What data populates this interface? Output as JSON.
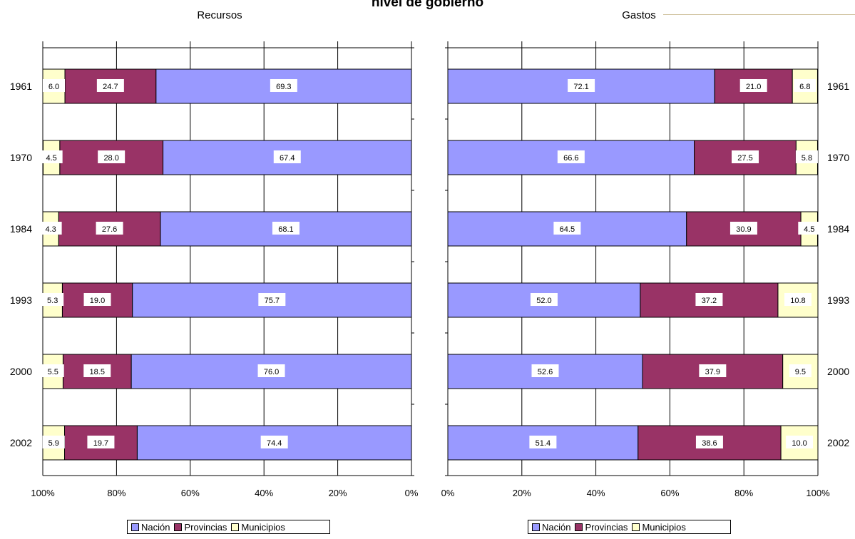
{
  "title": "nivel de gobierno",
  "colors": {
    "Nación": "#9999ff",
    "Provincias": "#993366",
    "Municipios": "#ffffcc"
  },
  "legend": [
    {
      "label": "Nación",
      "color": "#9999ff"
    },
    {
      "label": "Provincias",
      "color": "#993366"
    },
    {
      "label": "Municipios",
      "color": "#ffffcc"
    }
  ],
  "chart_data": [
    {
      "type": "bar",
      "title": "Recursos",
      "orientation": "horizontal-stacked-100",
      "x_direction": "reversed",
      "categories": [
        "1961",
        "1970",
        "1984",
        "1993",
        "2000",
        "2002"
      ],
      "series": [
        {
          "name": "Nación",
          "values": [
            69.3,
            67.4,
            68.1,
            75.7,
            76.0,
            74.4
          ],
          "labels": [
            "69.3",
            "67.4",
            "68.1",
            "75.7",
            "76.0",
            "74.4"
          ]
        },
        {
          "name": "Provincias",
          "values": [
            24.7,
            28.0,
            27.6,
            19.0,
            18.5,
            19.7
          ],
          "labels": [
            "24.7",
            "28.0",
            "27.6",
            "19.0",
            "18.5",
            "19.7"
          ]
        },
        {
          "name": "Municipios",
          "values": [
            6.0,
            4.5,
            4.3,
            5.3,
            5.5,
            5.9
          ],
          "labels": [
            "6.0",
            "4.5",
            "4.3",
            "5.3",
            "5.5",
            "5.9"
          ]
        }
      ],
      "xlim": [
        0,
        100
      ],
      "x_ticks": [
        "100%",
        "80%",
        "60%",
        "40%",
        "20%",
        "0%"
      ],
      "grid": true,
      "legend_position": "bottom"
    },
    {
      "type": "bar",
      "title": "Gastos",
      "orientation": "horizontal-stacked-100",
      "x_direction": "normal",
      "categories": [
        "1961",
        "1970",
        "1984",
        "1993",
        "2000",
        "2002"
      ],
      "series": [
        {
          "name": "Nación",
          "values": [
            72.1,
            66.6,
            64.5,
            52.0,
            52.6,
            51.4
          ],
          "labels": [
            "72.1",
            "66.6",
            "64.5",
            "52.0",
            "52.6",
            "51.4"
          ]
        },
        {
          "name": "Provincias",
          "values": [
            21.0,
            27.5,
            30.9,
            37.2,
            37.9,
            38.6
          ],
          "labels": [
            "21.0",
            "27.5",
            "30.9",
            "37.2",
            "37.9",
            "38.6"
          ]
        },
        {
          "name": "Municipios",
          "values": [
            6.8,
            5.8,
            4.5,
            10.8,
            9.5,
            10.0
          ],
          "labels": [
            "6.8",
            "5.8",
            "4.5",
            "10.8",
            "9.5",
            "10.0"
          ]
        }
      ],
      "xlim": [
        0,
        100
      ],
      "x_ticks": [
        "0%",
        "20%",
        "40%",
        "60%",
        "80%",
        "100%"
      ],
      "grid": true,
      "legend_position": "bottom"
    }
  ]
}
